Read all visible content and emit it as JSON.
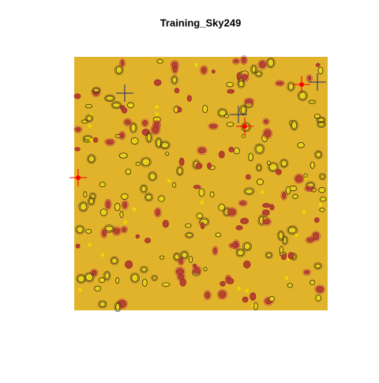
{
  "chart_data": {
    "type": "scatter",
    "title": "Training_Sky249",
    "xlim": [
      0,
      4200
    ],
    "ylim": [
      0,
      4200
    ],
    "background": "#e0b32a",
    "series": [
      {
        "color": "#1f2a6e",
        "x": [
          837,
          2721,
          4030
        ],
        "y": [
          3598,
          3245,
          3781
        ]
      },
      {
        "color": "#ff0000",
        "x": [
          3768,
          2826,
          65
        ],
        "y": [
          3742,
          3049,
          2198
        ]
      }
    ]
  }
}
